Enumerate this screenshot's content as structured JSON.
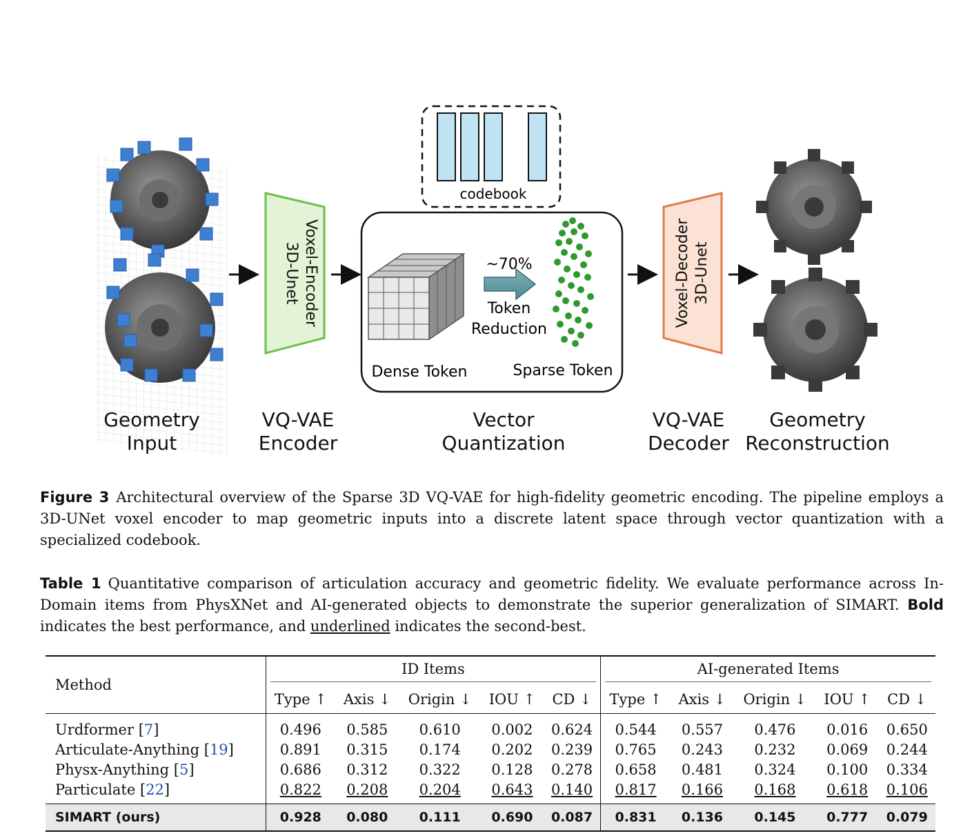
{
  "figure": {
    "stages": [
      {
        "line1": "Geometry",
        "line2": "Input"
      },
      {
        "line1": "VQ-VAE",
        "line2": "Encoder"
      },
      {
        "line1": "Vector",
        "line2": "Quantization"
      },
      {
        "line1": "VQ-VAE",
        "line2": "Decoder"
      },
      {
        "line1": "Geometry",
        "line2": "Reconstruction"
      }
    ],
    "encoder_box": {
      "line1": "Voxel-Encoder",
      "line2": "3D-Unet"
    },
    "decoder_box": {
      "line1": "Voxel-Decoder",
      "line2": "3D-Unet"
    },
    "codebook_label": "codebook",
    "reduction_percent": "~70%",
    "reduction_label_1": "Token",
    "reduction_label_2": "Reduction",
    "dense_label": "Dense Token",
    "sparse_label": "Sparse Token",
    "colors": {
      "encoder": "#6cbf4a",
      "decoder": "#e07a4a",
      "codebook_cell": "#bfe3f3",
      "voxel": "#3d7fd1",
      "points": "#2e9a2e"
    }
  },
  "figure_caption": {
    "label": "Figure 3",
    "text": "Architectural overview of the Sparse 3D VQ-VAE for high-fidelity geometric encoding. The pipeline employs a 3D-UNet voxel encoder to map geometric inputs into a discrete latent space through vector quantization with a specialized codebook."
  },
  "table_caption": {
    "label": "Table 1",
    "text": "Quantitative comparison of articulation accuracy and geometric fidelity. We evaluate performance across In-Domain items from PhysXNet and AI-generated objects to demonstrate the superior generalization of SIMART.",
    "bold_word": "Bold",
    "mid_text": " indicates the best performance, and ",
    "underline_word": "underlined",
    "end_text": " indicates the second-best."
  },
  "table": {
    "method_header": "Method",
    "group_headers": [
      "ID Items",
      "AI-generated Items"
    ],
    "metric_headers": [
      "Type ↑",
      "Axis ↓",
      "Origin ↓",
      "IOU ↑",
      "CD ↓",
      "Type ↑",
      "Axis ↓",
      "Origin ↓",
      "IOU ↑",
      "CD ↓"
    ],
    "rows": [
      {
        "method": "Urdformer ",
        "ref": "7",
        "values": [
          "0.496",
          "0.585",
          "0.610",
          "0.002",
          "0.624",
          "0.544",
          "0.557",
          "0.476",
          "0.016",
          "0.650"
        ]
      },
      {
        "method": "Articulate-Anything ",
        "ref": "19",
        "values": [
          "0.891",
          "0.315",
          "0.174",
          "0.202",
          "0.239",
          "0.765",
          "0.243",
          "0.232",
          "0.069",
          "0.244"
        ]
      },
      {
        "method": "Physx-Anything ",
        "ref": "5",
        "values": [
          "0.686",
          "0.312",
          "0.322",
          "0.128",
          "0.278",
          "0.658",
          "0.481",
          "0.324",
          "0.100",
          "0.334"
        ]
      },
      {
        "method": "Particulate ",
        "ref": "22",
        "values": [
          "0.822",
          "0.208",
          "0.204",
          "0.643",
          "0.140",
          "0.817",
          "0.166",
          "0.168",
          "0.618",
          "0.106"
        ]
      }
    ],
    "ours": {
      "method": "SIMART (ours)",
      "values": [
        "0.928",
        "0.080",
        "0.111",
        "0.690",
        "0.087",
        "0.831",
        "0.136",
        "0.145",
        "0.777",
        "0.079"
      ]
    }
  }
}
